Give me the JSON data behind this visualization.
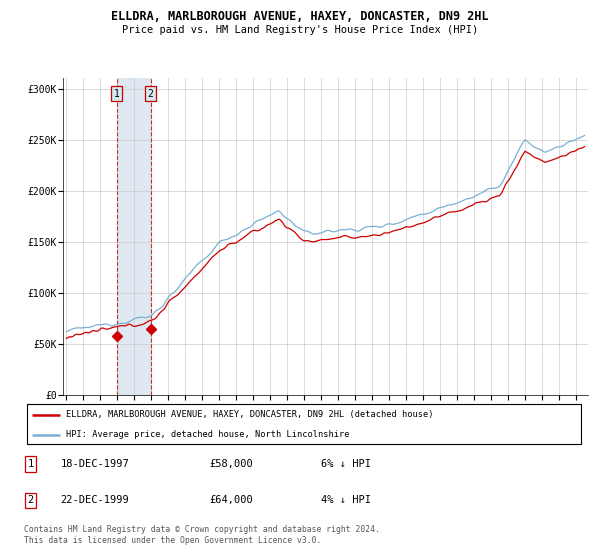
{
  "title": "ELLDRA, MARLBOROUGH AVENUE, HAXEY, DONCASTER, DN9 2HL",
  "subtitle": "Price paid vs. HM Land Registry's House Price Index (HPI)",
  "ylabel_ticks": [
    "£0",
    "£50K",
    "£100K",
    "£150K",
    "£200K",
    "£250K",
    "£300K"
  ],
  "ytick_values": [
    0,
    50000,
    100000,
    150000,
    200000,
    250000,
    300000
  ],
  "ylim": [
    0,
    310000
  ],
  "sale1_date": "18-DEC-1997",
  "sale1_price": 58000,
  "sale1_year": 1997.96,
  "sale1_pct": "6% ↓ HPI",
  "sale2_date": "22-DEC-1999",
  "sale2_price": 64000,
  "sale2_year": 1999.96,
  "sale2_pct": "4% ↓ HPI",
  "legend_line1": "ELLDRA, MARLBOROUGH AVENUE, HAXEY, DONCASTER, DN9 2HL (detached house)",
  "legend_line2": "HPI: Average price, detached house, North Lincolnshire",
  "footer": "Contains HM Land Registry data © Crown copyright and database right 2024.\nThis data is licensed under the Open Government Licence v3.0.",
  "line_color_red": "#cc0000",
  "line_color_blue": "#7ab0d4",
  "shade_color": "#c8d8e8",
  "grid_color": "#cccccc"
}
